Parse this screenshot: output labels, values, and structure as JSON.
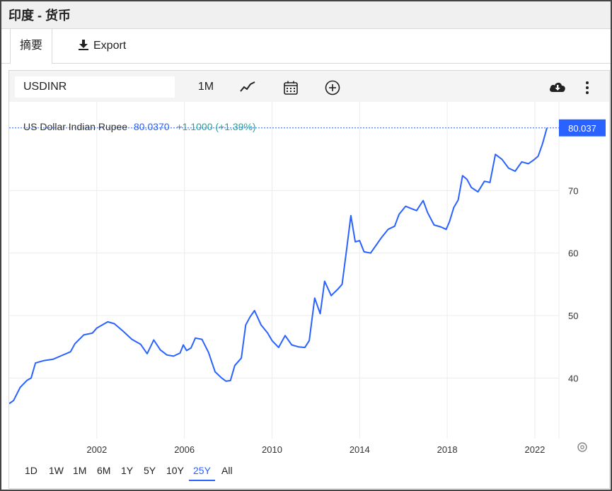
{
  "window": {
    "title": "印度 - 货币"
  },
  "tabs": {
    "summary_label": "摘要",
    "export_label": "Export"
  },
  "toolbar": {
    "symbol": "USDINR",
    "interval": "1M",
    "icons": [
      "line-chart-icon",
      "calendar-icon",
      "add-circle-icon",
      "cloud-download-icon",
      "more-vertical-icon"
    ]
  },
  "legend": {
    "name": "US Dollar Indian Rupee",
    "price": "80.0370",
    "change": "+1.1000 (+1.39%)",
    "price_color": "#2962ff",
    "change_color": "#26a69a"
  },
  "range_buttons": [
    "1D",
    "1W",
    "1M",
    "6M",
    "1Y",
    "5Y",
    "10Y",
    "25Y",
    "All"
  ],
  "active_range": "25Y",
  "chart_data": {
    "type": "line",
    "series": [
      {
        "name": "US Dollar Indian Rupee",
        "color": "#2962ff",
        "points": [
          [
            1998.0,
            35.9
          ],
          [
            1998.2,
            36.4
          ],
          [
            1998.5,
            38.5
          ],
          [
            1998.8,
            39.6
          ],
          [
            1999.0,
            40.0
          ],
          [
            1999.2,
            42.4
          ],
          [
            1999.6,
            42.8
          ],
          [
            2000.0,
            43.0
          ],
          [
            2000.4,
            43.6
          ],
          [
            2000.8,
            44.2
          ],
          [
            2001.0,
            45.5
          ],
          [
            2001.4,
            46.9
          ],
          [
            2001.8,
            47.2
          ],
          [
            2002.0,
            48.0
          ],
          [
            2002.3,
            48.6
          ],
          [
            2002.5,
            49.0
          ],
          [
            2002.8,
            48.7
          ],
          [
            2003.2,
            47.5
          ],
          [
            2003.6,
            46.2
          ],
          [
            2004.0,
            45.4
          ],
          [
            2004.3,
            43.9
          ],
          [
            2004.6,
            46.1
          ],
          [
            2004.9,
            44.5
          ],
          [
            2005.2,
            43.7
          ],
          [
            2005.5,
            43.5
          ],
          [
            2005.8,
            44.0
          ],
          [
            2005.95,
            45.3
          ],
          [
            2006.1,
            44.4
          ],
          [
            2006.3,
            44.8
          ],
          [
            2006.5,
            46.4
          ],
          [
            2006.8,
            46.2
          ],
          [
            2007.1,
            44.1
          ],
          [
            2007.4,
            41.0
          ],
          [
            2007.7,
            40.0
          ],
          [
            2007.9,
            39.5
          ],
          [
            2008.1,
            39.6
          ],
          [
            2008.3,
            42.0
          ],
          [
            2008.6,
            43.2
          ],
          [
            2008.8,
            48.5
          ],
          [
            2009.0,
            49.8
          ],
          [
            2009.2,
            50.8
          ],
          [
            2009.5,
            48.5
          ],
          [
            2009.8,
            47.2
          ],
          [
            2010.0,
            46.0
          ],
          [
            2010.3,
            44.9
          ],
          [
            2010.6,
            46.8
          ],
          [
            2010.9,
            45.3
          ],
          [
            2011.2,
            45.0
          ],
          [
            2011.5,
            44.9
          ],
          [
            2011.7,
            46.0
          ],
          [
            2011.95,
            52.8
          ],
          [
            2012.2,
            50.3
          ],
          [
            2012.4,
            55.5
          ],
          [
            2012.7,
            53.2
          ],
          [
            2013.0,
            54.2
          ],
          [
            2013.2,
            55.0
          ],
          [
            2013.4,
            60.4
          ],
          [
            2013.6,
            66.0
          ],
          [
            2013.8,
            61.8
          ],
          [
            2014.0,
            62.0
          ],
          [
            2014.2,
            60.2
          ],
          [
            2014.5,
            60.0
          ],
          [
            2014.8,
            61.5
          ],
          [
            2015.0,
            62.5
          ],
          [
            2015.3,
            63.8
          ],
          [
            2015.6,
            64.3
          ],
          [
            2015.8,
            66.2
          ],
          [
            2016.1,
            67.5
          ],
          [
            2016.3,
            67.2
          ],
          [
            2016.6,
            66.8
          ],
          [
            2016.9,
            68.4
          ],
          [
            2017.1,
            66.5
          ],
          [
            2017.4,
            64.5
          ],
          [
            2017.7,
            64.2
          ],
          [
            2017.95,
            63.8
          ],
          [
            2018.1,
            65.0
          ],
          [
            2018.3,
            67.3
          ],
          [
            2018.5,
            68.5
          ],
          [
            2018.7,
            72.4
          ],
          [
            2018.9,
            71.8
          ],
          [
            2019.1,
            70.5
          ],
          [
            2019.4,
            69.8
          ],
          [
            2019.7,
            71.5
          ],
          [
            2019.95,
            71.3
          ],
          [
            2020.2,
            75.8
          ],
          [
            2020.5,
            75.0
          ],
          [
            2020.8,
            73.6
          ],
          [
            2021.1,
            73.1
          ],
          [
            2021.4,
            74.6
          ],
          [
            2021.7,
            74.3
          ],
          [
            2021.95,
            74.9
          ],
          [
            2022.15,
            75.5
          ],
          [
            2022.35,
            77.5
          ],
          [
            2022.55,
            80.037
          ]
        ]
      }
    ],
    "x_ticks": [
      "2002",
      "2006",
      "2010",
      "2014",
      "2018",
      "2022"
    ],
    "y_ticks": [
      "40",
      "50",
      "60",
      "70"
    ],
    "last_value_label": "80.037",
    "xlim": [
      1998.0,
      2023.1
    ],
    "ylim": [
      30.3,
      84.2
    ],
    "grid": true
  }
}
